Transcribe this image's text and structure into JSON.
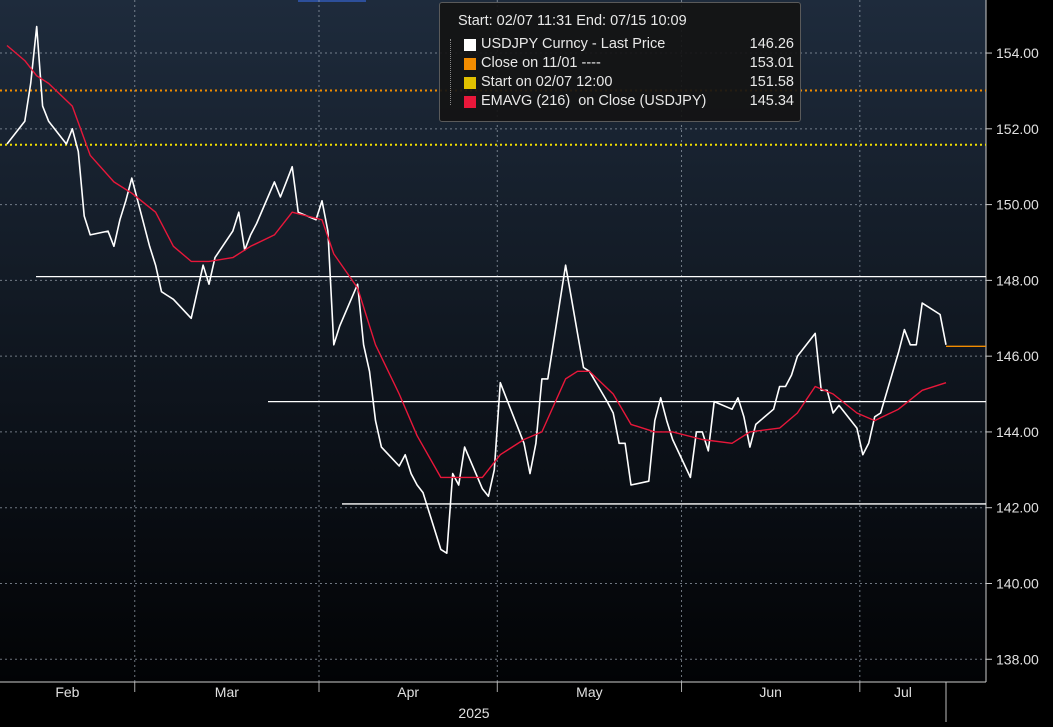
{
  "chart_data": {
    "type": "line",
    "title": "",
    "year_label": "2025",
    "x_labels": [
      "Feb",
      "Mar",
      "Apr",
      "May",
      "Jun",
      "Jul"
    ],
    "y_ticks": [
      138.0,
      140.0,
      142.0,
      144.0,
      146.0,
      148.0,
      150.0,
      152.0,
      154.0
    ],
    "y_tick_labels": [
      "138.00",
      "140.00",
      "142.00",
      "144.00",
      "146.00",
      "148.00",
      "150.00",
      "152.00",
      "154.00"
    ],
    "ylim": [
      137.4,
      155.4
    ],
    "grid": true,
    "legend_position": "top-center",
    "legend": {
      "header": "Start: 02/07 11:31 End: 07/15 10:09",
      "items": [
        {
          "name": "USDJPY Curncy - Last Price",
          "value": "146.26",
          "color": "#ffffff"
        },
        {
          "name": "Close on 11/01 ----",
          "value": "153.01",
          "color": "#f28c00"
        },
        {
          "name": "Start on 02/07 12:00",
          "value": "151.58",
          "color": "#e0c000"
        },
        {
          "name": "EMAVG (216)  on Close (USDJPY)",
          "value": "145.34",
          "color": "#e8173a"
        }
      ]
    },
    "reference_lines": [
      {
        "value": 153.01,
        "style": "dotted",
        "color": "#f28c00"
      },
      {
        "value": 151.58,
        "style": "dotted",
        "color": "#f0e000"
      },
      {
        "value": 148.1,
        "style": "solid",
        "color": "#ffffff"
      },
      {
        "value": 144.8,
        "style": "solid",
        "color": "#ffffff"
      },
      {
        "value": 142.1,
        "style": "solid",
        "color": "#ffffff"
      }
    ],
    "series": [
      {
        "name": "USDJPY Curncy - Last Price",
        "color": "#ffffff",
        "points": [
          [
            "02-07",
            151.6
          ],
          [
            "02-10",
            152.2
          ],
          [
            "02-11",
            153.2
          ],
          [
            "02-12",
            154.7
          ],
          [
            "02-13",
            152.6
          ],
          [
            "02-14",
            152.2
          ],
          [
            "02-17",
            151.6
          ],
          [
            "02-18",
            152.0
          ],
          [
            "02-19",
            151.4
          ],
          [
            "02-20",
            149.7
          ],
          [
            "02-21",
            149.2
          ],
          [
            "02-24",
            149.3
          ],
          [
            "02-25",
            148.9
          ],
          [
            "02-26",
            149.6
          ],
          [
            "02-27",
            150.1
          ],
          [
            "02-28",
            150.7
          ],
          [
            "03-03",
            148.9
          ],
          [
            "03-04",
            148.4
          ],
          [
            "03-05",
            147.7
          ],
          [
            "03-06",
            147.6
          ],
          [
            "03-07",
            147.5
          ],
          [
            "03-10",
            147.0
          ],
          [
            "03-11",
            147.7
          ],
          [
            "03-12",
            148.4
          ],
          [
            "03-13",
            147.9
          ],
          [
            "03-14",
            148.6
          ],
          [
            "03-17",
            149.3
          ],
          [
            "03-18",
            149.8
          ],
          [
            "03-19",
            148.8
          ],
          [
            "03-20",
            149.2
          ],
          [
            "03-21",
            149.5
          ],
          [
            "03-24",
            150.6
          ],
          [
            "03-25",
            150.2
          ],
          [
            "03-26",
            150.6
          ],
          [
            "03-27",
            151.0
          ],
          [
            "03-28",
            149.8
          ],
          [
            "03-31",
            149.6
          ],
          [
            "04-01",
            150.1
          ],
          [
            "04-02",
            149.3
          ],
          [
            "04-03",
            146.3
          ],
          [
            "04-04",
            146.8
          ],
          [
            "04-07",
            147.9
          ],
          [
            "04-08",
            146.3
          ],
          [
            "04-09",
            145.6
          ],
          [
            "04-10",
            144.3
          ],
          [
            "04-11",
            143.6
          ],
          [
            "04-14",
            143.1
          ],
          [
            "04-15",
            143.4
          ],
          [
            "04-16",
            142.9
          ],
          [
            "04-17",
            142.6
          ],
          [
            "04-18",
            142.4
          ],
          [
            "04-21",
            140.9
          ],
          [
            "04-22",
            140.8
          ],
          [
            "04-23",
            142.9
          ],
          [
            "04-24",
            142.6
          ],
          [
            "04-25",
            143.6
          ],
          [
            "04-28",
            142.5
          ],
          [
            "04-29",
            142.3
          ],
          [
            "04-30",
            143.0
          ],
          [
            "05-01",
            145.3
          ],
          [
            "05-02",
            144.9
          ],
          [
            "05-05",
            143.7
          ],
          [
            "05-06",
            142.9
          ],
          [
            "05-07",
            143.7
          ],
          [
            "05-08",
            145.4
          ],
          [
            "05-09",
            145.4
          ],
          [
            "05-12",
            148.4
          ],
          [
            "05-13",
            147.5
          ],
          [
            "05-14",
            146.6
          ],
          [
            "05-15",
            145.7
          ],
          [
            "05-16",
            145.6
          ],
          [
            "05-19",
            144.8
          ],
          [
            "05-20",
            144.5
          ],
          [
            "05-21",
            143.7
          ],
          [
            "05-22",
            143.7
          ],
          [
            "05-23",
            142.6
          ],
          [
            "05-26",
            142.7
          ],
          [
            "05-27",
            144.3
          ],
          [
            "05-28",
            144.9
          ],
          [
            "05-29",
            144.3
          ],
          [
            "05-30",
            143.8
          ],
          [
            "06-02",
            142.8
          ],
          [
            "06-03",
            144.0
          ],
          [
            "06-04",
            144.0
          ],
          [
            "06-05",
            143.5
          ],
          [
            "06-06",
            144.8
          ],
          [
            "06-09",
            144.6
          ],
          [
            "06-10",
            144.9
          ],
          [
            "06-11",
            144.4
          ],
          [
            "06-12",
            143.6
          ],
          [
            "06-13",
            144.2
          ],
          [
            "06-16",
            144.6
          ],
          [
            "06-17",
            145.2
          ],
          [
            "06-18",
            145.2
          ],
          [
            "06-19",
            145.5
          ],
          [
            "06-20",
            146.0
          ],
          [
            "06-23",
            146.6
          ],
          [
            "06-24",
            145.1
          ],
          [
            "06-25",
            145.1
          ],
          [
            "06-26",
            144.5
          ],
          [
            "06-27",
            144.7
          ],
          [
            "06-30",
            144.1
          ],
          [
            "07-01",
            143.4
          ],
          [
            "07-02",
            143.7
          ],
          [
            "07-03",
            144.4
          ],
          [
            "07-04",
            144.5
          ],
          [
            "07-07",
            146.1
          ],
          [
            "07-08",
            146.7
          ],
          [
            "07-09",
            146.3
          ],
          [
            "07-10",
            146.3
          ],
          [
            "07-11",
            147.4
          ],
          [
            "07-14",
            147.1
          ],
          [
            "07-15",
            146.3
          ]
        ]
      },
      {
        "name": "EMAVG (216)  on Close (USDJPY)",
        "color": "#e8173a",
        "points": [
          [
            "02-07",
            154.2
          ],
          [
            "02-10",
            153.8
          ],
          [
            "02-12",
            153.4
          ],
          [
            "02-14",
            153.2
          ],
          [
            "02-18",
            152.6
          ],
          [
            "02-21",
            151.3
          ],
          [
            "02-25",
            150.6
          ],
          [
            "02-28",
            150.3
          ],
          [
            "03-04",
            149.8
          ],
          [
            "03-07",
            148.9
          ],
          [
            "03-10",
            148.5
          ],
          [
            "03-13",
            148.5
          ],
          [
            "03-17",
            148.6
          ],
          [
            "03-20",
            148.9
          ],
          [
            "03-24",
            149.2
          ],
          [
            "03-27",
            149.8
          ],
          [
            "04-01",
            149.6
          ],
          [
            "04-03",
            148.7
          ],
          [
            "04-07",
            147.8
          ],
          [
            "04-10",
            146.3
          ],
          [
            "04-14",
            145.0
          ],
          [
            "04-17",
            143.9
          ],
          [
            "04-21",
            142.8
          ],
          [
            "04-24",
            142.8
          ],
          [
            "04-28",
            142.8
          ],
          [
            "05-01",
            143.4
          ],
          [
            "05-05",
            143.8
          ],
          [
            "05-08",
            144.0
          ],
          [
            "05-12",
            145.4
          ],
          [
            "05-14",
            145.6
          ],
          [
            "05-16",
            145.6
          ],
          [
            "05-20",
            145.0
          ],
          [
            "05-23",
            144.2
          ],
          [
            "05-27",
            144.0
          ],
          [
            "05-30",
            144.0
          ],
          [
            "06-04",
            143.8
          ],
          [
            "06-09",
            143.7
          ],
          [
            "06-12",
            144.0
          ],
          [
            "06-17",
            144.1
          ],
          [
            "06-20",
            144.5
          ],
          [
            "06-23",
            145.2
          ],
          [
            "06-26",
            145.0
          ],
          [
            "06-30",
            144.5
          ],
          [
            "07-03",
            144.3
          ],
          [
            "07-07",
            144.6
          ],
          [
            "07-11",
            145.1
          ],
          [
            "07-15",
            145.3
          ]
        ]
      }
    ],
    "last_price_marker": 146.26
  }
}
